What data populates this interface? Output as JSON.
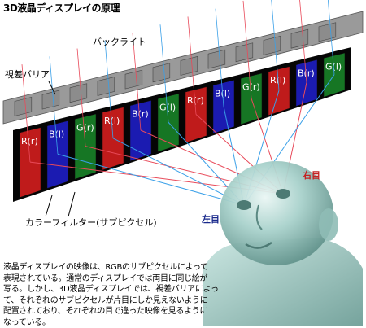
{
  "title": "3D液晶ディスプレイの原理",
  "labels": {
    "backlight": "バックライト",
    "parallax_barrier": "視差バリア",
    "color_filter": "カラーフィルター(サブピクセル)",
    "left_eye": "左目",
    "right_eye": "右目"
  },
  "subpixels": [
    {
      "label": "R(r)",
      "color": "#e02020"
    },
    {
      "label": "B(l)",
      "color": "#2020d0"
    },
    {
      "label": "G(r)",
      "color": "#1a8a2a"
    },
    {
      "label": "R(l)",
      "color": "#e02020"
    },
    {
      "label": "B(r)",
      "color": "#2020d0"
    },
    {
      "label": "G(l)",
      "color": "#1a8a2a"
    },
    {
      "label": "R(r)",
      "color": "#e02020"
    },
    {
      "label": "B(l)",
      "color": "#2020d0"
    },
    {
      "label": "G(r)",
      "color": "#1a8a2a"
    },
    {
      "label": "R(l)",
      "color": "#e02020"
    },
    {
      "label": "B(r)",
      "color": "#2020d0"
    },
    {
      "label": "G(l)",
      "color": "#1a8a2a"
    }
  ],
  "ray_colors": {
    "left": "#3aa0e8",
    "right": "#e84a5a"
  },
  "description": [
    "液晶ディスプレイの映像は、RGBのサブピクセルによって",
    "表現されている。通常のディスプレイでは両目に同じ絵が",
    "写る。しかし、3D液晶ディスプレイでは、視差バリアによっ",
    "て、それぞれのサブピクセルが片目にしか見えないように",
    "配置されており、それぞれの目で違った映像を見るように",
    "なっている。"
  ]
}
